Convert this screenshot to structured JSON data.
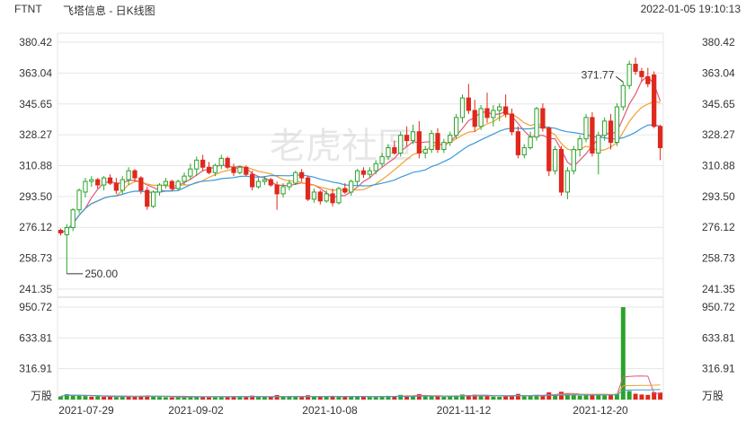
{
  "header": {
    "ticker": "FTNT",
    "subtitle": "飞塔信息 - 日K线图",
    "timestamp": "2022-01-05 19:10:13"
  },
  "watermark": "老虎社區",
  "colors": {
    "up": "#2aa32a",
    "down": "#e0281c",
    "ma5": "#e05a7a",
    "ma10": "#f0a030",
    "ma20": "#3a9ad9",
    "grid": "#e6e6e6",
    "text": "#333333"
  },
  "chart_data": {
    "type": "candlestick",
    "price_axis": {
      "ticks": [
        "380.42",
        "363.04",
        "345.65",
        "328.27",
        "310.88",
        "293.50",
        "276.12",
        "258.73",
        "241.35"
      ],
      "ylim": [
        241.35,
        380.42
      ]
    },
    "volume_axis": {
      "ticks": [
        "950.72",
        "633.81",
        "316.91"
      ],
      "unit": "万股",
      "ylim": [
        0,
        950.72
      ]
    },
    "x_tick_labels": [
      "2021-07-29",
      "2021-09-02",
      "2021-10-08",
      "2021-11-12",
      "2021-12-20"
    ],
    "annotations": [
      {
        "label": "371.77",
        "kind": "high",
        "date_index": 91
      },
      {
        "label": "250.00",
        "kind": "low",
        "date_index": 1
      }
    ],
    "candles": [
      [
        274.5,
        275.5,
        271.5,
        273.0
      ],
      [
        272.0,
        278.0,
        250.0,
        276.0
      ],
      [
        276.0,
        287.0,
        274.0,
        286.0
      ],
      [
        286.0,
        298.0,
        284.0,
        297.0
      ],
      [
        296.0,
        304.0,
        293.0,
        302.0
      ],
      [
        302.0,
        305.0,
        299.0,
        303.0
      ],
      [
        303.0,
        304.0,
        298.0,
        300.0
      ],
      [
        300.0,
        305.0,
        297.0,
        304.0
      ],
      [
        304.0,
        306.0,
        300.0,
        301.0
      ],
      [
        301.0,
        304.0,
        295.0,
        297.0
      ],
      [
        297.0,
        305.0,
        295.0,
        303.0
      ],
      [
        303.0,
        310.0,
        300.0,
        308.0
      ],
      [
        308.0,
        309.0,
        302.0,
        304.0
      ],
      [
        304.0,
        305.0,
        295.0,
        297.0
      ],
      [
        297.0,
        299.0,
        286.0,
        288.0
      ],
      [
        288.0,
        297.0,
        287.0,
        296.0
      ],
      [
        296.0,
        301.0,
        294.0,
        300.0
      ],
      [
        300.0,
        304.0,
        298.0,
        302.0
      ],
      [
        302.0,
        303.0,
        297.0,
        298.0
      ],
      [
        298.0,
        303.0,
        297.0,
        302.0
      ],
      [
        302.0,
        307.0,
        300.0,
        305.0
      ],
      [
        305.0,
        312.0,
        303.0,
        309.0
      ],
      [
        309.0,
        316.0,
        305.0,
        314.0
      ],
      [
        314.0,
        317.0,
        308.0,
        310.0
      ],
      [
        310.0,
        313.0,
        306.0,
        307.0
      ],
      [
        307.0,
        312.0,
        305.0,
        311.0
      ],
      [
        311.0,
        317.0,
        309.0,
        315.0
      ],
      [
        315.0,
        316.0,
        309.0,
        310.0
      ],
      [
        310.0,
        312.0,
        305.0,
        307.0
      ],
      [
        307.0,
        311.0,
        306.0,
        310.0
      ],
      [
        310.0,
        311.0,
        305.0,
        306.0
      ],
      [
        306.0,
        308.0,
        297.0,
        299.0
      ],
      [
        299.0,
        304.0,
        298.0,
        302.0
      ],
      [
        302.0,
        305.0,
        300.0,
        303.0
      ],
      [
        303.0,
        304.0,
        299.0,
        300.0
      ],
      [
        300.0,
        302.0,
        286.0,
        295.0
      ],
      [
        295.0,
        301.0,
        293.0,
        299.0
      ],
      [
        299.0,
        303.0,
        297.0,
        301.0
      ],
      [
        301.0,
        308.0,
        300.0,
        307.0
      ],
      [
        307.0,
        309.0,
        302.0,
        304.0
      ],
      [
        304.0,
        305.0,
        291.0,
        292.0
      ],
      [
        292.0,
        298.0,
        290.0,
        296.0
      ],
      [
        296.0,
        297.0,
        289.0,
        291.0
      ],
      [
        291.0,
        297.0,
        290.0,
        295.0
      ],
      [
        295.0,
        298.0,
        288.0,
        290.0
      ],
      [
        290.0,
        299.0,
        289.0,
        298.0
      ],
      [
        298.0,
        301.0,
        295.0,
        296.0
      ],
      [
        296.0,
        303.0,
        294.0,
        302.0
      ],
      [
        302.0,
        309.0,
        300.0,
        308.0
      ],
      [
        308.0,
        310.0,
        304.0,
        306.0
      ],
      [
        306.0,
        310.0,
        304.0,
        308.0
      ],
      [
        308.0,
        314.0,
        306.0,
        312.0
      ],
      [
        312.0,
        318.0,
        310.0,
        316.0
      ],
      [
        316.0,
        323.0,
        314.0,
        321.0
      ],
      [
        321.0,
        325.0,
        317.0,
        318.0
      ],
      [
        318.0,
        330.0,
        316.0,
        328.0
      ],
      [
        328.0,
        333.0,
        322.0,
        325.0
      ],
      [
        325.0,
        334.0,
        323.0,
        330.0
      ],
      [
        330.0,
        336.0,
        315.0,
        318.0
      ],
      [
        318.0,
        322.0,
        315.0,
        320.0
      ],
      [
        320.0,
        331.0,
        318.0,
        329.0
      ],
      [
        329.0,
        332.0,
        318.0,
        320.0
      ],
      [
        320.0,
        326.0,
        318.0,
        324.0
      ],
      [
        324.0,
        330.0,
        322.0,
        328.0
      ],
      [
        328.0,
        340.0,
        326.0,
        338.0
      ],
      [
        338.0,
        351.0,
        335.0,
        349.0
      ],
      [
        349.0,
        357.0,
        340.0,
        342.0
      ],
      [
        342.0,
        348.0,
        330.0,
        333.0
      ],
      [
        333.0,
        345.0,
        331.0,
        343.0
      ],
      [
        343.0,
        352.0,
        335.0,
        338.0
      ],
      [
        338.0,
        345.0,
        333.0,
        342.0
      ],
      [
        342.0,
        346.0,
        336.0,
        344.0
      ],
      [
        344.0,
        351.0,
        338.0,
        340.0
      ],
      [
        340.0,
        343.0,
        328.0,
        330.0
      ],
      [
        330.0,
        333.0,
        315.0,
        317.0
      ],
      [
        317.0,
        323.0,
        315.0,
        321.0
      ],
      [
        321.0,
        330.0,
        320.0,
        327.0
      ],
      [
        327.0,
        344.0,
        325.0,
        343.0
      ],
      [
        343.0,
        346.0,
        330.0,
        332.0
      ],
      [
        332.0,
        333.0,
        305.0,
        308.0
      ],
      [
        308.0,
        322.0,
        306.0,
        320.0
      ],
      [
        320.0,
        322.0,
        294.0,
        296.0
      ],
      [
        296.0,
        310.0,
        292.0,
        308.0
      ],
      [
        308.0,
        322.0,
        306.0,
        320.0
      ],
      [
        320.0,
        328.0,
        316.0,
        326.0
      ],
      [
        326.0,
        340.0,
        324.0,
        338.0
      ],
      [
        338.0,
        341.0,
        316.0,
        318.0
      ],
      [
        318.0,
        330.0,
        306.0,
        328.0
      ],
      [
        328.0,
        338.0,
        325.0,
        336.0
      ],
      [
        336.0,
        340.0,
        320.0,
        324.0
      ],
      [
        324.0,
        346.0,
        322.0,
        344.0
      ],
      [
        344.0,
        358.0,
        342.0,
        356.0
      ],
      [
        356.0,
        370.0,
        354.0,
        368.0
      ],
      [
        368.0,
        371.77,
        362.0,
        364.0
      ],
      [
        364.0,
        366.0,
        358.0,
        361.0
      ],
      [
        361.0,
        366.0,
        355.0,
        357.0
      ],
      [
        362.0,
        364.0,
        332.0,
        333.0
      ],
      [
        333.0,
        334.0,
        314.0,
        321.0
      ]
    ],
    "volumes": [
      [
        32,
        "up"
      ],
      [
        55,
        "up"
      ],
      [
        48,
        "up"
      ],
      [
        42,
        "up"
      ],
      [
        36,
        "up"
      ],
      [
        30,
        "down"
      ],
      [
        34,
        "up"
      ],
      [
        28,
        "down"
      ],
      [
        30,
        "down"
      ],
      [
        26,
        "up"
      ],
      [
        35,
        "up"
      ],
      [
        29,
        "down"
      ],
      [
        33,
        "down"
      ],
      [
        38,
        "down"
      ],
      [
        42,
        "down"
      ],
      [
        30,
        "up"
      ],
      [
        26,
        "up"
      ],
      [
        24,
        "up"
      ],
      [
        22,
        "down"
      ],
      [
        24,
        "up"
      ],
      [
        26,
        "up"
      ],
      [
        28,
        "up"
      ],
      [
        32,
        "up"
      ],
      [
        30,
        "down"
      ],
      [
        26,
        "down"
      ],
      [
        28,
        "up"
      ],
      [
        30,
        "up"
      ],
      [
        28,
        "down"
      ],
      [
        34,
        "down"
      ],
      [
        26,
        "up"
      ],
      [
        28,
        "down"
      ],
      [
        40,
        "down"
      ],
      [
        28,
        "up"
      ],
      [
        24,
        "up"
      ],
      [
        26,
        "down"
      ],
      [
        46,
        "down"
      ],
      [
        30,
        "up"
      ],
      [
        28,
        "up"
      ],
      [
        30,
        "up"
      ],
      [
        26,
        "down"
      ],
      [
        44,
        "down"
      ],
      [
        30,
        "up"
      ],
      [
        32,
        "down"
      ],
      [
        28,
        "up"
      ],
      [
        34,
        "down"
      ],
      [
        30,
        "up"
      ],
      [
        28,
        "down"
      ],
      [
        32,
        "up"
      ],
      [
        36,
        "up"
      ],
      [
        28,
        "down"
      ],
      [
        26,
        "up"
      ],
      [
        32,
        "up"
      ],
      [
        34,
        "up"
      ],
      [
        38,
        "up"
      ],
      [
        30,
        "down"
      ],
      [
        48,
        "up"
      ],
      [
        40,
        "down"
      ],
      [
        36,
        "up"
      ],
      [
        56,
        "down"
      ],
      [
        32,
        "up"
      ],
      [
        36,
        "up"
      ],
      [
        34,
        "down"
      ],
      [
        28,
        "up"
      ],
      [
        30,
        "up"
      ],
      [
        42,
        "up"
      ],
      [
        52,
        "up"
      ],
      [
        46,
        "down"
      ],
      [
        50,
        "down"
      ],
      [
        38,
        "up"
      ],
      [
        40,
        "down"
      ],
      [
        30,
        "up"
      ],
      [
        28,
        "up"
      ],
      [
        34,
        "down"
      ],
      [
        42,
        "down"
      ],
      [
        58,
        "down"
      ],
      [
        34,
        "up"
      ],
      [
        38,
        "up"
      ],
      [
        48,
        "up"
      ],
      [
        44,
        "down"
      ],
      [
        74,
        "down"
      ],
      [
        52,
        "up"
      ],
      [
        80,
        "down"
      ],
      [
        60,
        "up"
      ],
      [
        46,
        "up"
      ],
      [
        40,
        "up"
      ],
      [
        48,
        "up"
      ],
      [
        54,
        "down"
      ],
      [
        56,
        "up"
      ],
      [
        42,
        "up"
      ],
      [
        46,
        "down"
      ],
      [
        60,
        "up"
      ],
      [
        950,
        "up"
      ],
      [
        88,
        "up"
      ],
      [
        60,
        "down"
      ],
      [
        52,
        "down"
      ],
      [
        48,
        "down"
      ],
      [
        76,
        "down"
      ],
      [
        72,
        "down"
      ]
    ],
    "ma_series": [
      {
        "key": "ma5",
        "window": 5
      },
      {
        "key": "ma10",
        "window": 10
      },
      {
        "key": "ma20",
        "window": 20
      }
    ]
  }
}
